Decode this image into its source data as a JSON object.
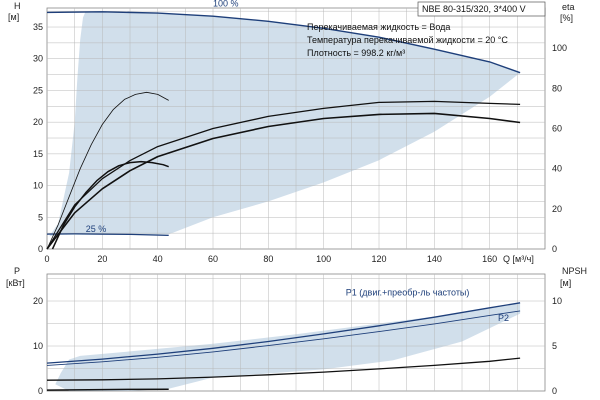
{
  "chart_data": [
    {
      "type": "line",
      "title": "NBE 80-315/320, 3*400 V",
      "annotations": [
        "Перекачиваемая жидкость = Вода",
        "Температура перекачиваемой жидкости = 20 °C",
        "Плотность = 998.2 кг/м³"
      ],
      "xlabel": "Q [м³/ч]",
      "xlim": [
        0,
        180
      ],
      "xticks": [
        0,
        20,
        40,
        60,
        80,
        100,
        120,
        140,
        160
      ],
      "ylabel": "H",
      "ylabel_unit": "[м]",
      "ylim": [
        0,
        38
      ],
      "yticks": [
        0,
        5,
        10,
        15,
        20,
        25,
        30,
        35
      ],
      "y2label": "eta",
      "y2label_unit": "[%]",
      "y2lim": [
        0,
        120
      ],
      "y2ticks": [
        0,
        20,
        40,
        60,
        80,
        100
      ],
      "grid": true,
      "operating_range": [
        [
          0.8,
          2
        ],
        [
          4,
          4
        ],
        [
          8,
          12
        ],
        [
          10,
          20
        ],
        [
          11,
          27
        ],
        [
          12,
          33
        ],
        [
          13,
          36.5
        ],
        [
          14,
          37.5
        ],
        [
          20,
          37.5
        ],
        [
          40,
          37.2
        ],
        [
          60,
          36.7
        ],
        [
          80,
          35.9
        ],
        [
          100,
          34.8
        ],
        [
          120,
          33.4
        ],
        [
          140,
          31.5
        ],
        [
          160,
          29.5
        ],
        [
          171,
          27.8
        ],
        [
          160,
          24
        ],
        [
          140,
          18.5
        ],
        [
          120,
          14
        ],
        [
          100,
          10.5
        ],
        [
          80,
          7.5
        ],
        [
          60,
          5
        ],
        [
          44,
          2.3
        ],
        [
          20,
          2.2
        ],
        [
          5,
          2.2
        ]
      ],
      "series": [
        {
          "name": "100 %",
          "axis": "H",
          "color": "#1e3f7a",
          "width": 1.4,
          "label_at": [
            60,
            38.2
          ],
          "points": [
            [
              0,
              37.3
            ],
            [
              20,
              37.4
            ],
            [
              40,
              37.2
            ],
            [
              60,
              36.7
            ],
            [
              80,
              35.9
            ],
            [
              100,
              34.8
            ],
            [
              120,
              33.4
            ],
            [
              140,
              31.5
            ],
            [
              160,
              29.5
            ],
            [
              171,
              27.8
            ]
          ]
        },
        {
          "name": "25 %",
          "axis": "H",
          "color": "#1e3f7a",
          "width": 1.2,
          "label_at": [
            14,
            2.7
          ],
          "points": [
            [
              0,
              2.35
            ],
            [
              10,
              2.4
            ],
            [
              20,
              2.35
            ],
            [
              30,
              2.3
            ],
            [
              44,
              2.15
            ]
          ]
        },
        {
          "axis": "eta",
          "color": "#111111",
          "width": 1.3,
          "points": [
            [
              0,
              0
            ],
            [
              10,
              22
            ],
            [
              20,
              35
            ],
            [
              30,
              44
            ],
            [
              40,
              51
            ],
            [
              60,
              60
            ],
            [
              80,
              66
            ],
            [
              100,
              70
            ],
            [
              120,
              73
            ],
            [
              140,
              73.5
            ],
            [
              160,
              72.5
            ],
            [
              171,
              72
            ]
          ]
        },
        {
          "axis": "eta",
          "color": "#111111",
          "width": 1.6,
          "points": [
            [
              0,
              0
            ],
            [
              10,
              18
            ],
            [
              20,
              30
            ],
            [
              30,
              39
            ],
            [
              40,
              46
            ],
            [
              60,
              55
            ],
            [
              80,
              61
            ],
            [
              100,
              65
            ],
            [
              120,
              67
            ],
            [
              140,
              67.5
            ],
            [
              160,
              65
            ],
            [
              171,
              63
            ]
          ]
        },
        {
          "axis": "eta",
          "color": "#111111",
          "width": 0.8,
          "points": [
            [
              0,
              0
            ],
            [
              4,
              12
            ],
            [
              8,
              26
            ],
            [
              12,
              40
            ],
            [
              16,
              52
            ],
            [
              20,
              62
            ],
            [
              24,
              69.5
            ],
            [
              28,
              74.5
            ],
            [
              32,
              77
            ],
            [
              36,
              78
            ],
            [
              40,
              77
            ],
            [
              44,
              74
            ]
          ]
        },
        {
          "axis": "eta",
          "color": "#111111",
          "width": 1.5,
          "points": [
            [
              2,
              0
            ],
            [
              6,
              12
            ],
            [
              10,
              21
            ],
            [
              14,
              28
            ],
            [
              18,
              34
            ],
            [
              22,
              38.5
            ],
            [
              26,
              41.5
            ],
            [
              30,
              43
            ],
            [
              34,
              43.5
            ],
            [
              38,
              43
            ],
            [
              42,
              42
            ],
            [
              44,
              41
            ]
          ]
        }
      ]
    },
    {
      "type": "line",
      "xlim": [
        0,
        180
      ],
      "ylabel": "P",
      "ylabel_unit": "[кВт]",
      "ylim": [
        0,
        26
      ],
      "yticks": [
        0,
        10,
        20
      ],
      "y2label": "NPSH",
      "y2label_unit": "[м]",
      "y2lim": [
        0,
        13
      ],
      "y2ticks": [
        0,
        5,
        10
      ],
      "grid": true,
      "operating_range": [
        [
          3,
          1.5
        ],
        [
          5,
          4
        ],
        [
          8,
          7
        ],
        [
          12,
          7.8
        ],
        [
          30,
          8.8
        ],
        [
          60,
          10.5
        ],
        [
          90,
          12.6
        ],
        [
          120,
          15
        ],
        [
          150,
          17.3
        ],
        [
          171,
          19.5
        ],
        [
          171,
          17.2
        ],
        [
          150,
          11
        ],
        [
          125,
          6.8
        ],
        [
          100,
          4.8
        ],
        [
          60,
          3
        ],
        [
          44,
          0.5
        ],
        [
          30,
          0
        ],
        [
          8,
          0
        ]
      ],
      "series": [
        {
          "name": "P1 (двиг.+преобр-ль частоты)",
          "axis": "P",
          "color": "#1e3f7a",
          "width": 1.3,
          "label_at": [
            108,
            21.2
          ],
          "points": [
            [
              0,
              6.2
            ],
            [
              20,
              7.1
            ],
            [
              40,
              8.2
            ],
            [
              60,
              9.5
            ],
            [
              80,
              11
            ],
            [
              100,
              12.7
            ],
            [
              120,
              14.5
            ],
            [
              140,
              16.4
            ],
            [
              160,
              18.5
            ],
            [
              171,
              19.6
            ]
          ]
        },
        {
          "name": "P2",
          "axis": "P",
          "color": "#1e3f7a",
          "width": 0.9,
          "label_at": [
            163,
            15.6
          ],
          "points": [
            [
              0,
              5.7
            ],
            [
              20,
              6.5
            ],
            [
              40,
              7.5
            ],
            [
              60,
              8.7
            ],
            [
              80,
              10.1
            ],
            [
              100,
              11.6
            ],
            [
              120,
              13.2
            ],
            [
              140,
              14.9
            ],
            [
              160,
              16.8
            ],
            [
              171,
              17.8
            ]
          ]
        },
        {
          "axis": "NPSH",
          "color": "#111111",
          "width": 1.3,
          "points": [
            [
              0,
              1.2
            ],
            [
              20,
              1.25
            ],
            [
              40,
              1.35
            ],
            [
              60,
              1.55
            ],
            [
              80,
              1.8
            ],
            [
              100,
              2.1
            ],
            [
              120,
              2.45
            ],
            [
              140,
              2.85
            ],
            [
              160,
              3.3
            ],
            [
              171,
              3.65
            ]
          ]
        },
        {
          "axis": "P",
          "color": "#111111",
          "width": 1.5,
          "points": [
            [
              0,
              0.2
            ],
            [
              10,
              0.25
            ],
            [
              20,
              0.3
            ],
            [
              30,
              0.35
            ],
            [
              44,
              0.4
            ]
          ]
        }
      ]
    }
  ]
}
